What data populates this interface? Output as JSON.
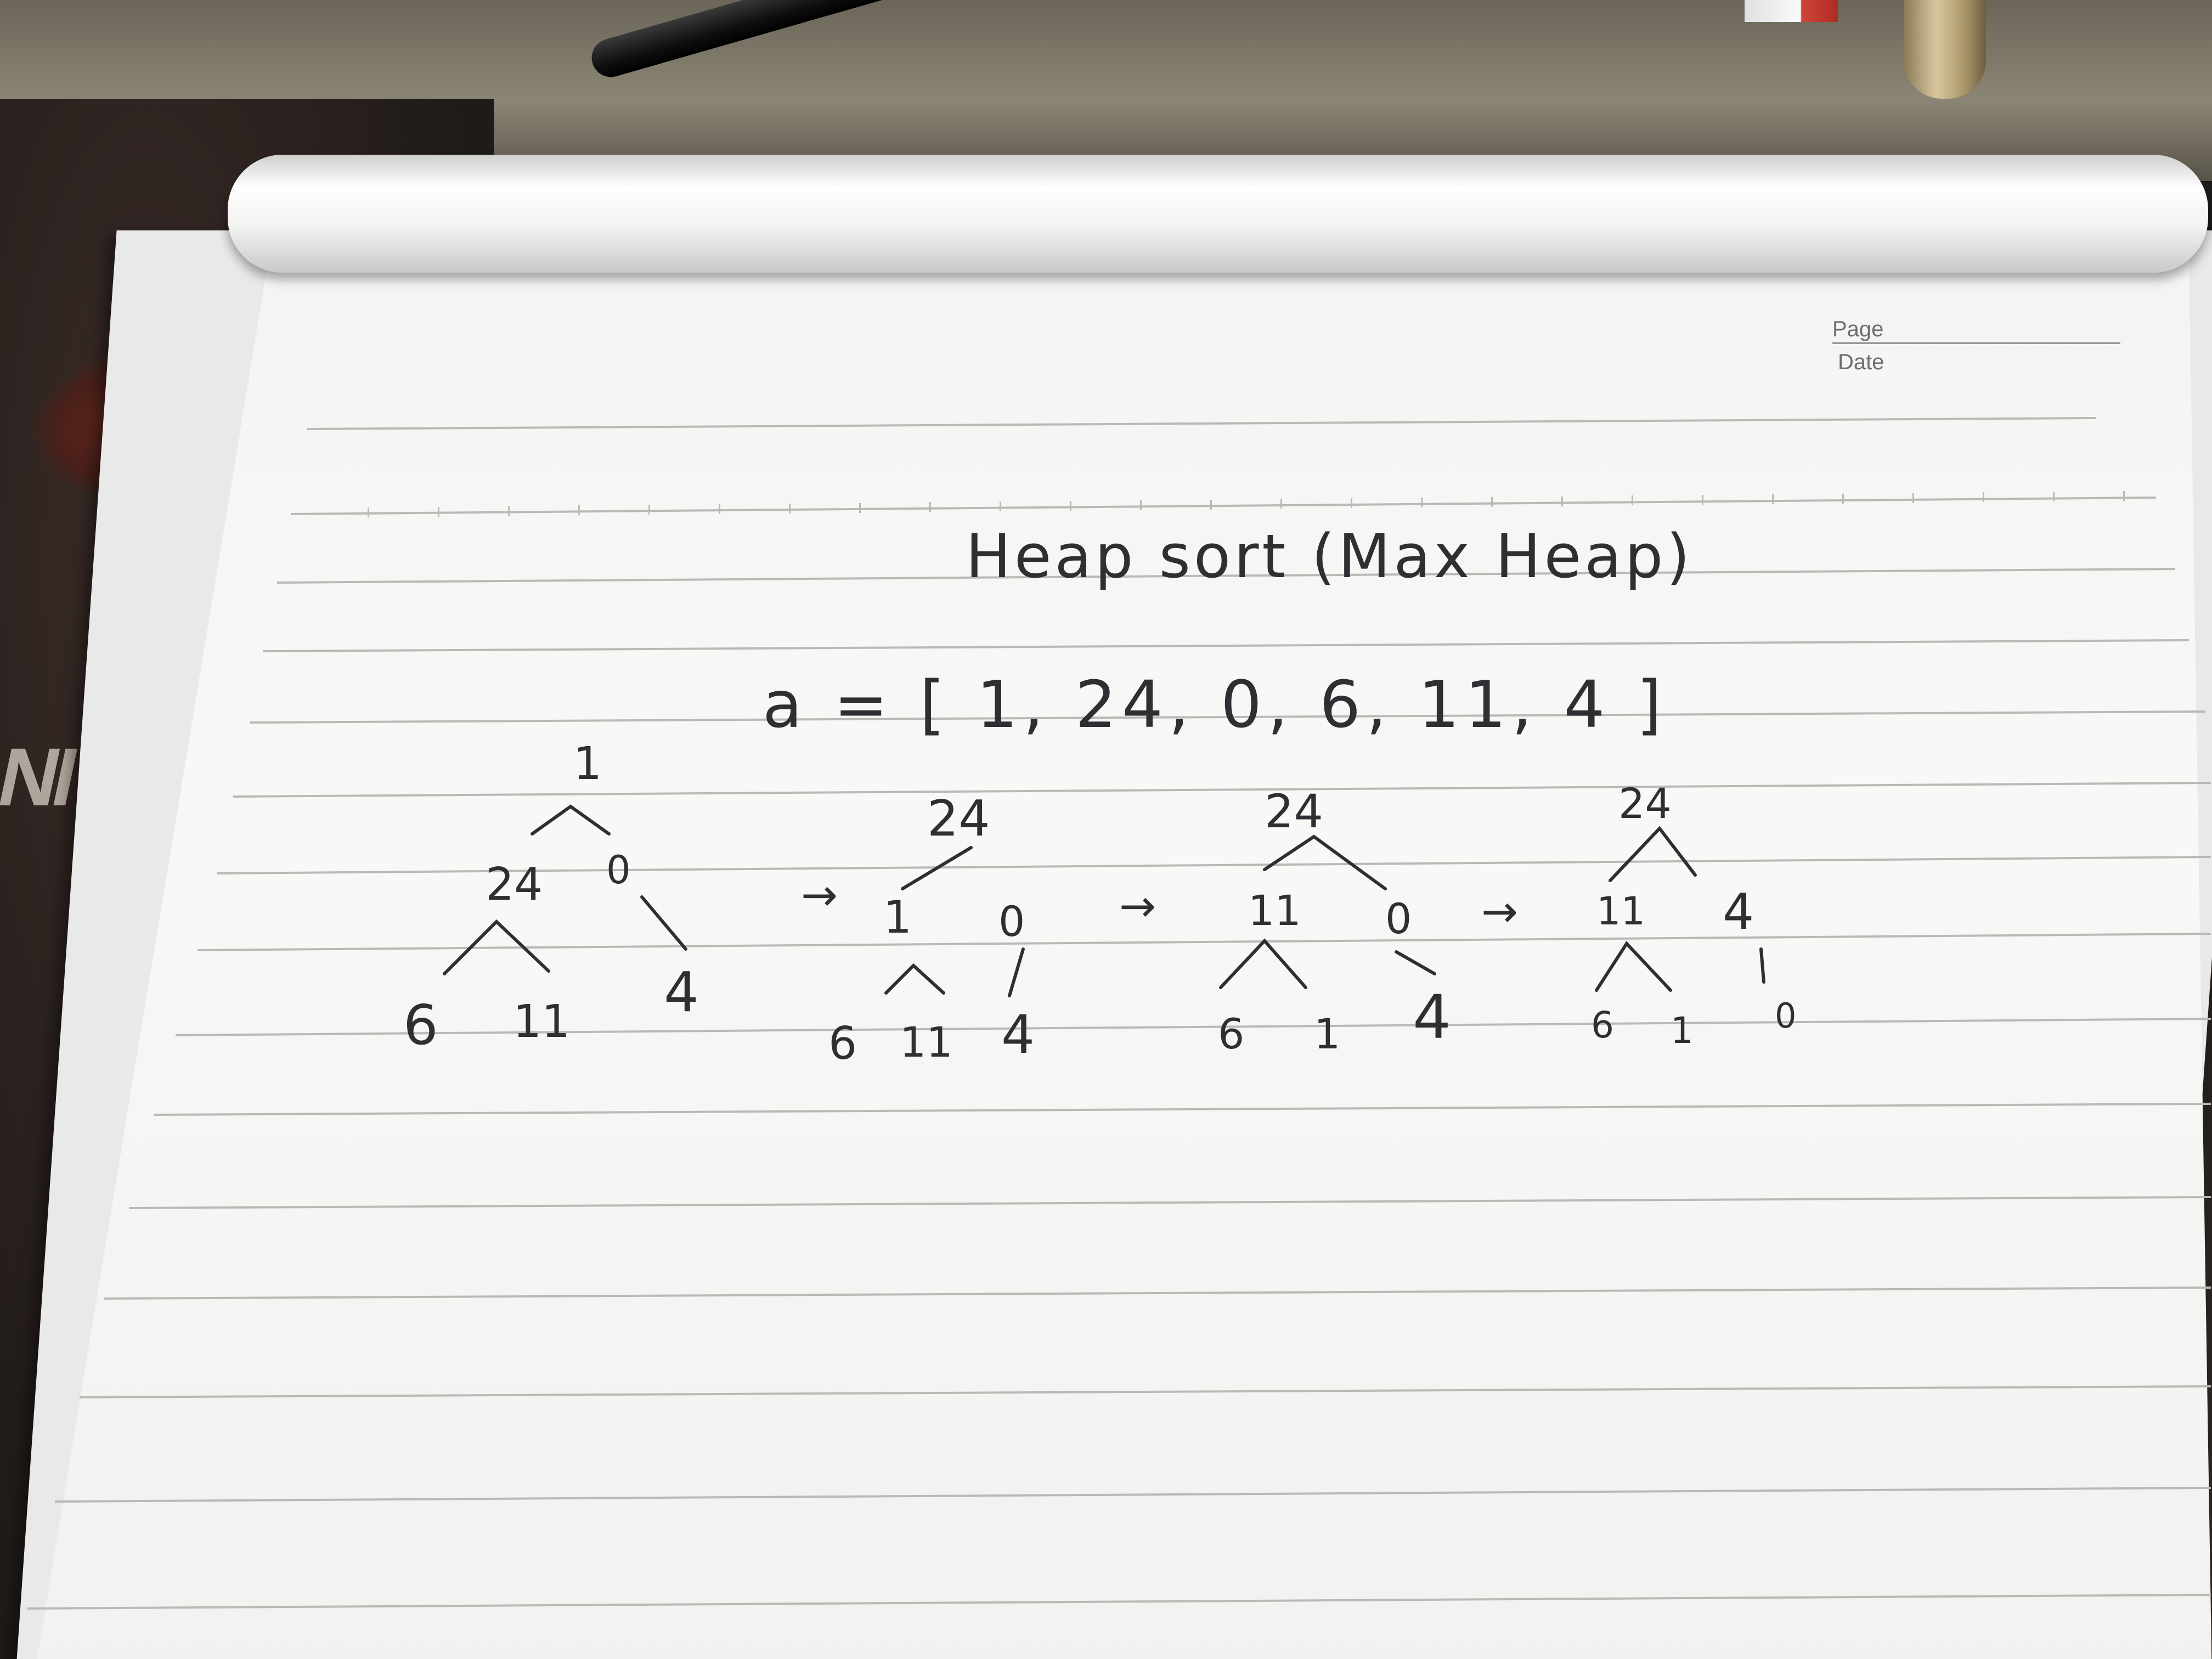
{
  "header": {
    "page_label": "Page",
    "date_label": "Date"
  },
  "notes": {
    "title": "Heap sort (Max Heap)",
    "array": "a = [ 1, 24, 0, 6, 11, 4 ]",
    "arrow": "→",
    "trees": [
      {
        "root": "1",
        "left": "24",
        "right": "0",
        "ll": "6",
        "lr": "11",
        "rr": "4"
      },
      {
        "root": "24",
        "left": "1",
        "right": "0",
        "ll": "6",
        "lr": "11",
        "rr": "4"
      },
      {
        "root": "24",
        "left": "11",
        "right": "0",
        "ll": "6",
        "lr": "1",
        "rr": "4"
      },
      {
        "root": "24",
        "left": "11",
        "right": "4",
        "ll": "6",
        "lr": "1",
        "rr": "0"
      }
    ]
  },
  "background": {
    "rug_letters": "NI"
  }
}
